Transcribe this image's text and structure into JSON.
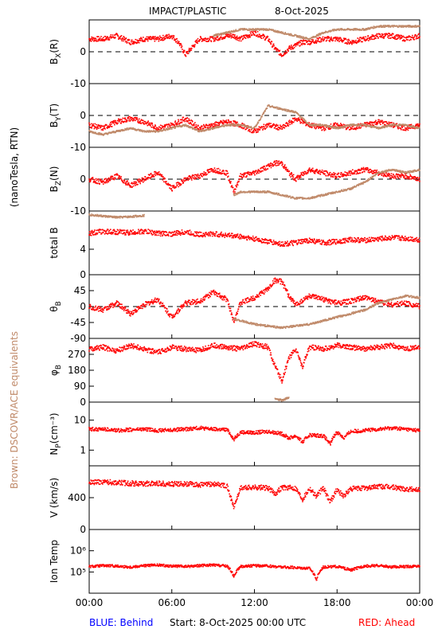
{
  "title": "IMPACT/PLASTIC",
  "date": "8-Oct-2025",
  "left_label_units": "(nanoTesla, RTN)",
  "left_label_brown": "Brown: DSCOVR/ACE equivalents",
  "footer": {
    "blue": "BLUE: Behind",
    "start": "Start:  8-Oct-2025 00:00 UTC",
    "red": "RED: Ahead"
  },
  "colors": {
    "ahead": "#ff0000",
    "equiv": "#c08a6a",
    "behind": "#0000ff",
    "axis": "#000000"
  },
  "x_ticks": [
    "00:00",
    "06:00",
    "12:00",
    "18:00",
    "00:00"
  ],
  "chart_data": {
    "type": "scatter",
    "x_unit": "hours",
    "xlim": [
      0,
      24
    ],
    "panels": [
      {
        "id": "bx",
        "label": "B",
        "sub": "X",
        "paren": "(R)",
        "ylim": [
          -10,
          10
        ],
        "ticks": [
          0,
          -10
        ],
        "zero_line": true,
        "series": [
          {
            "role": "ahead",
            "x": [
              0,
              1,
              2,
              3,
              4,
              5,
              6,
              6.5,
              7,
              8,
              9,
              10,
              10.5,
              11,
              12,
              12.5,
              13,
              13.5,
              14,
              14.5,
              15,
              15.5,
              16,
              17,
              18,
              19,
              20,
              21,
              22,
              23,
              24
            ],
            "y": [
              4,
              4,
              5,
              3,
              4,
              4,
              5,
              3,
              -1,
              4,
              4,
              5,
              5,
              4,
              6,
              5,
              4,
              1,
              -1,
              1,
              2,
              3,
              3,
              4,
              4,
              3,
              4,
              5,
              5,
              4,
              5
            ]
          },
          {
            "role": "equiv",
            "x": [
              9,
              10,
              11,
              12,
              13,
              14,
              15,
              16,
              17,
              18,
              19,
              20,
              21,
              22,
              23,
              24
            ],
            "y": [
              5,
              6,
              7,
              7,
              7,
              6,
              5,
              4,
              6,
              7,
              7,
              7,
              8,
              8,
              8,
              8
            ]
          }
        ]
      },
      {
        "id": "by",
        "label": "B",
        "sub": "Y",
        "paren": "(T)",
        "ylim": [
          -10,
          10
        ],
        "ticks": [
          0,
          -10
        ],
        "zero_line": true,
        "series": [
          {
            "role": "ahead",
            "x": [
              0,
              1,
              2,
              3,
              4,
              5,
              6,
              7,
              8,
              9,
              10,
              11,
              12,
              13,
              14,
              15,
              16,
              17,
              18,
              19,
              20,
              21,
              22,
              23,
              24
            ],
            "y": [
              -3,
              -4,
              -2,
              -1,
              -2,
              -4,
              -3,
              -1,
              -4,
              -3,
              -2,
              -3,
              -5,
              -3,
              -4,
              -1,
              -3,
              -4,
              -3,
              -4,
              -3,
              -2,
              -3,
              -4,
              -3
            ]
          },
          {
            "role": "equiv",
            "x": [
              0,
              1,
              2,
              3,
              4,
              5,
              6,
              7,
              8,
              9,
              10,
              11,
              12,
              13,
              14,
              15,
              16,
              17,
              18,
              19,
              20,
              21,
              22,
              23,
              24
            ],
            "y": [
              -5,
              -6,
              -5,
              -4,
              -5,
              -5,
              -4,
              -3,
              -5,
              -4,
              -3,
              -3,
              -4,
              3,
              2,
              1,
              -3,
              -3,
              -4,
              -3,
              -3,
              -4,
              -3,
              -3,
              -4
            ]
          }
        ]
      },
      {
        "id": "bz",
        "label": "B",
        "sub": "Z",
        "paren": "(N)",
        "ylim": [
          -10,
          10
        ],
        "ticks": [
          0,
          -10
        ],
        "zero_line": true,
        "series": [
          {
            "role": "ahead",
            "x": [
              0,
              1,
              2,
              3,
              4,
              5,
              6,
              7,
              8,
              9,
              10,
              10.5,
              11,
              12,
              13,
              13.5,
              14,
              14.5,
              15,
              16,
              17,
              18,
              19,
              20,
              21,
              22,
              23,
              24
            ],
            "y": [
              0,
              -1,
              1,
              -2,
              0,
              2,
              -3,
              0,
              1,
              3,
              2,
              -4,
              1,
              2,
              4,
              5,
              5,
              2,
              0,
              3,
              2,
              1,
              2,
              3,
              2,
              1,
              1,
              0
            ]
          },
          {
            "role": "equiv",
            "x": [
              10.5,
              11,
              12,
              13,
              14,
              15,
              16,
              17,
              18,
              19,
              20,
              21,
              22,
              23,
              24
            ],
            "y": [
              -5,
              -4,
              -4,
              -4,
              -5,
              -6,
              -6,
              -5,
              -4,
              -3,
              -1,
              2,
              3,
              2,
              3
            ]
          }
        ]
      },
      {
        "id": "bt",
        "label": "total B",
        "sub": "",
        "paren": "",
        "ylim": [
          0,
          10
        ],
        "ticks": [
          4,
          0
        ],
        "zero_line": false,
        "series": [
          {
            "role": "ahead",
            "x": [
              0,
              1,
              2,
              3,
              4,
              5,
              6,
              7,
              8,
              9,
              10,
              11,
              12,
              13,
              14,
              15,
              16,
              17,
              18,
              19,
              20,
              21,
              22,
              23,
              24
            ],
            "y": [
              6.5,
              6.8,
              6.7,
              6.6,
              6.8,
              6.5,
              6.4,
              6.7,
              6.3,
              6.4,
              6.2,
              6.0,
              5.6,
              5.2,
              4.8,
              5.0,
              5.4,
              5.0,
              5.2,
              5.5,
              5.4,
              5.6,
              5.8,
              5.7,
              5.5
            ]
          },
          {
            "role": "equiv",
            "x": [
              0,
              1,
              2,
              3,
              4
            ],
            "y": [
              9.4,
              9.2,
              9.0,
              9.1,
              9.3
            ]
          }
        ]
      },
      {
        "id": "theta",
        "label": "θ",
        "sub": "B",
        "paren": "",
        "ylim": [
          -90,
          90
        ],
        "ticks": [
          45,
          0,
          -45,
          -90
        ],
        "zero_line": true,
        "series": [
          {
            "role": "ahead",
            "x": [
              0,
              1,
              2,
              3,
              4,
              5,
              6,
              7,
              8,
              9,
              10,
              10.5,
              11,
              12,
              13,
              13.5,
              14,
              14.5,
              15,
              16,
              17,
              18,
              19,
              20,
              21,
              22,
              23,
              24
            ],
            "y": [
              0,
              -10,
              10,
              -20,
              5,
              20,
              -30,
              10,
              15,
              40,
              20,
              -40,
              10,
              25,
              50,
              75,
              70,
              30,
              5,
              30,
              20,
              10,
              15,
              25,
              15,
              5,
              10,
              0
            ]
          },
          {
            "role": "equiv",
            "x": [
              10.5,
              11,
              12,
              13,
              14,
              15,
              16,
              17,
              18,
              19,
              20,
              21,
              22,
              23,
              24
            ],
            "y": [
              -35,
              -40,
              -50,
              -55,
              -60,
              -55,
              -50,
              -40,
              -30,
              -20,
              -10,
              10,
              20,
              30,
              25
            ]
          }
        ]
      },
      {
        "id": "phi",
        "label": "φ",
        "sub": "B",
        "paren": "",
        "ylim": [
          0,
          360
        ],
        "ticks": [
          270,
          180,
          90,
          0
        ],
        "zero_line": false,
        "series": [
          {
            "role": "ahead",
            "x": [
              0,
              1,
              2,
              3,
              4,
              5,
              6,
              7,
              8,
              9,
              10,
              11,
              12,
              13,
              13.5,
              14,
              14.5,
              15,
              15.5,
              16,
              17,
              18,
              19,
              20,
              21,
              22,
              23,
              24
            ],
            "y": [
              300,
              310,
              290,
              320,
              300,
              280,
              310,
              300,
              290,
              320,
              310,
              300,
              330,
              310,
              200,
              120,
              250,
              300,
              200,
              310,
              300,
              320,
              310,
              300,
              310,
              320,
              300,
              310
            ]
          },
          {
            "role": "equiv",
            "x": [
              13.5,
              14,
              14.5
            ],
            "y": [
              20,
              10,
              25
            ]
          }
        ]
      },
      {
        "id": "np",
        "label": "N",
        "sub": "P",
        "paren": "(cm⁻³)",
        "ylim": [
          0.3,
          40
        ],
        "log": true,
        "ticks": [
          10,
          1
        ],
        "zero_line": false,
        "series": [
          {
            "role": "ahead",
            "x": [
              0,
              1,
              2,
              3,
              4,
              5,
              6,
              7,
              8,
              9,
              10,
              10.5,
              11,
              12,
              13,
              14,
              14.5,
              15,
              15.5,
              16,
              17,
              17.5,
              18,
              18.5,
              19,
              20,
              21,
              22,
              23,
              24
            ],
            "y": [
              5,
              5,
              4.5,
              4.8,
              5,
              4.5,
              4.7,
              5,
              5.5,
              5,
              4.8,
              2.2,
              4,
              3.8,
              4.2,
              3.5,
              2.5,
              3,
              1.8,
              3.2,
              3,
              1.5,
              4,
              2.5,
              4.2,
              4.5,
              5,
              5.5,
              5,
              4.5
            ]
          }
        ]
      },
      {
        "id": "v",
        "label": "V",
        "sub": "",
        "paren": "(km/s)",
        "ylim": [
          0,
          800
        ],
        "ticks": [
          400,
          0
        ],
        "zero_line": false,
        "series": [
          {
            "role": "ahead",
            "x": [
              0,
              1,
              2,
              3,
              4,
              5,
              6,
              7,
              8,
              9,
              10,
              10.5,
              11,
              12,
              13,
              13.5,
              14,
              15,
              15.5,
              16,
              16.5,
              17,
              17.5,
              18,
              18.5,
              19,
              20,
              21,
              22,
              23,
              24
            ],
            "y": [
              590,
              600,
              590,
              580,
              575,
              580,
              570,
              575,
              560,
              570,
              555,
              280,
              520,
              530,
              520,
              450,
              530,
              520,
              380,
              520,
              420,
              520,
              350,
              500,
              420,
              510,
              520,
              540,
              530,
              510,
              500
            ]
          }
        ]
      },
      {
        "id": "temp",
        "label": "Ion Temp",
        "sub": "",
        "paren": "",
        "ylim": [
          10000,
          10000000
        ],
        "log": true,
        "ticks": [
          1000000,
          100000
        ],
        "zero_line": false,
        "tick_labels": [
          "10⁶",
          "10⁵"
        ],
        "series": [
          {
            "role": "ahead",
            "x": [
              0,
              1,
              2,
              3,
              4,
              5,
              6,
              7,
              8,
              9,
              10,
              10.5,
              11,
              12,
              13,
              14,
              15,
              16,
              16.5,
              17,
              18,
              19,
              20,
              21,
              22,
              23,
              24
            ],
            "y": [
              180000,
              200000,
              190000,
              170000,
              200000,
              210000,
              190000,
              180000,
              200000,
              210000,
              190000,
              60000,
              180000,
              200000,
              190000,
              170000,
              160000,
              150000,
              40000,
              170000,
              180000,
              120000,
              190000,
              200000,
              170000,
              180000,
              190000
            ]
          }
        ]
      }
    ]
  }
}
